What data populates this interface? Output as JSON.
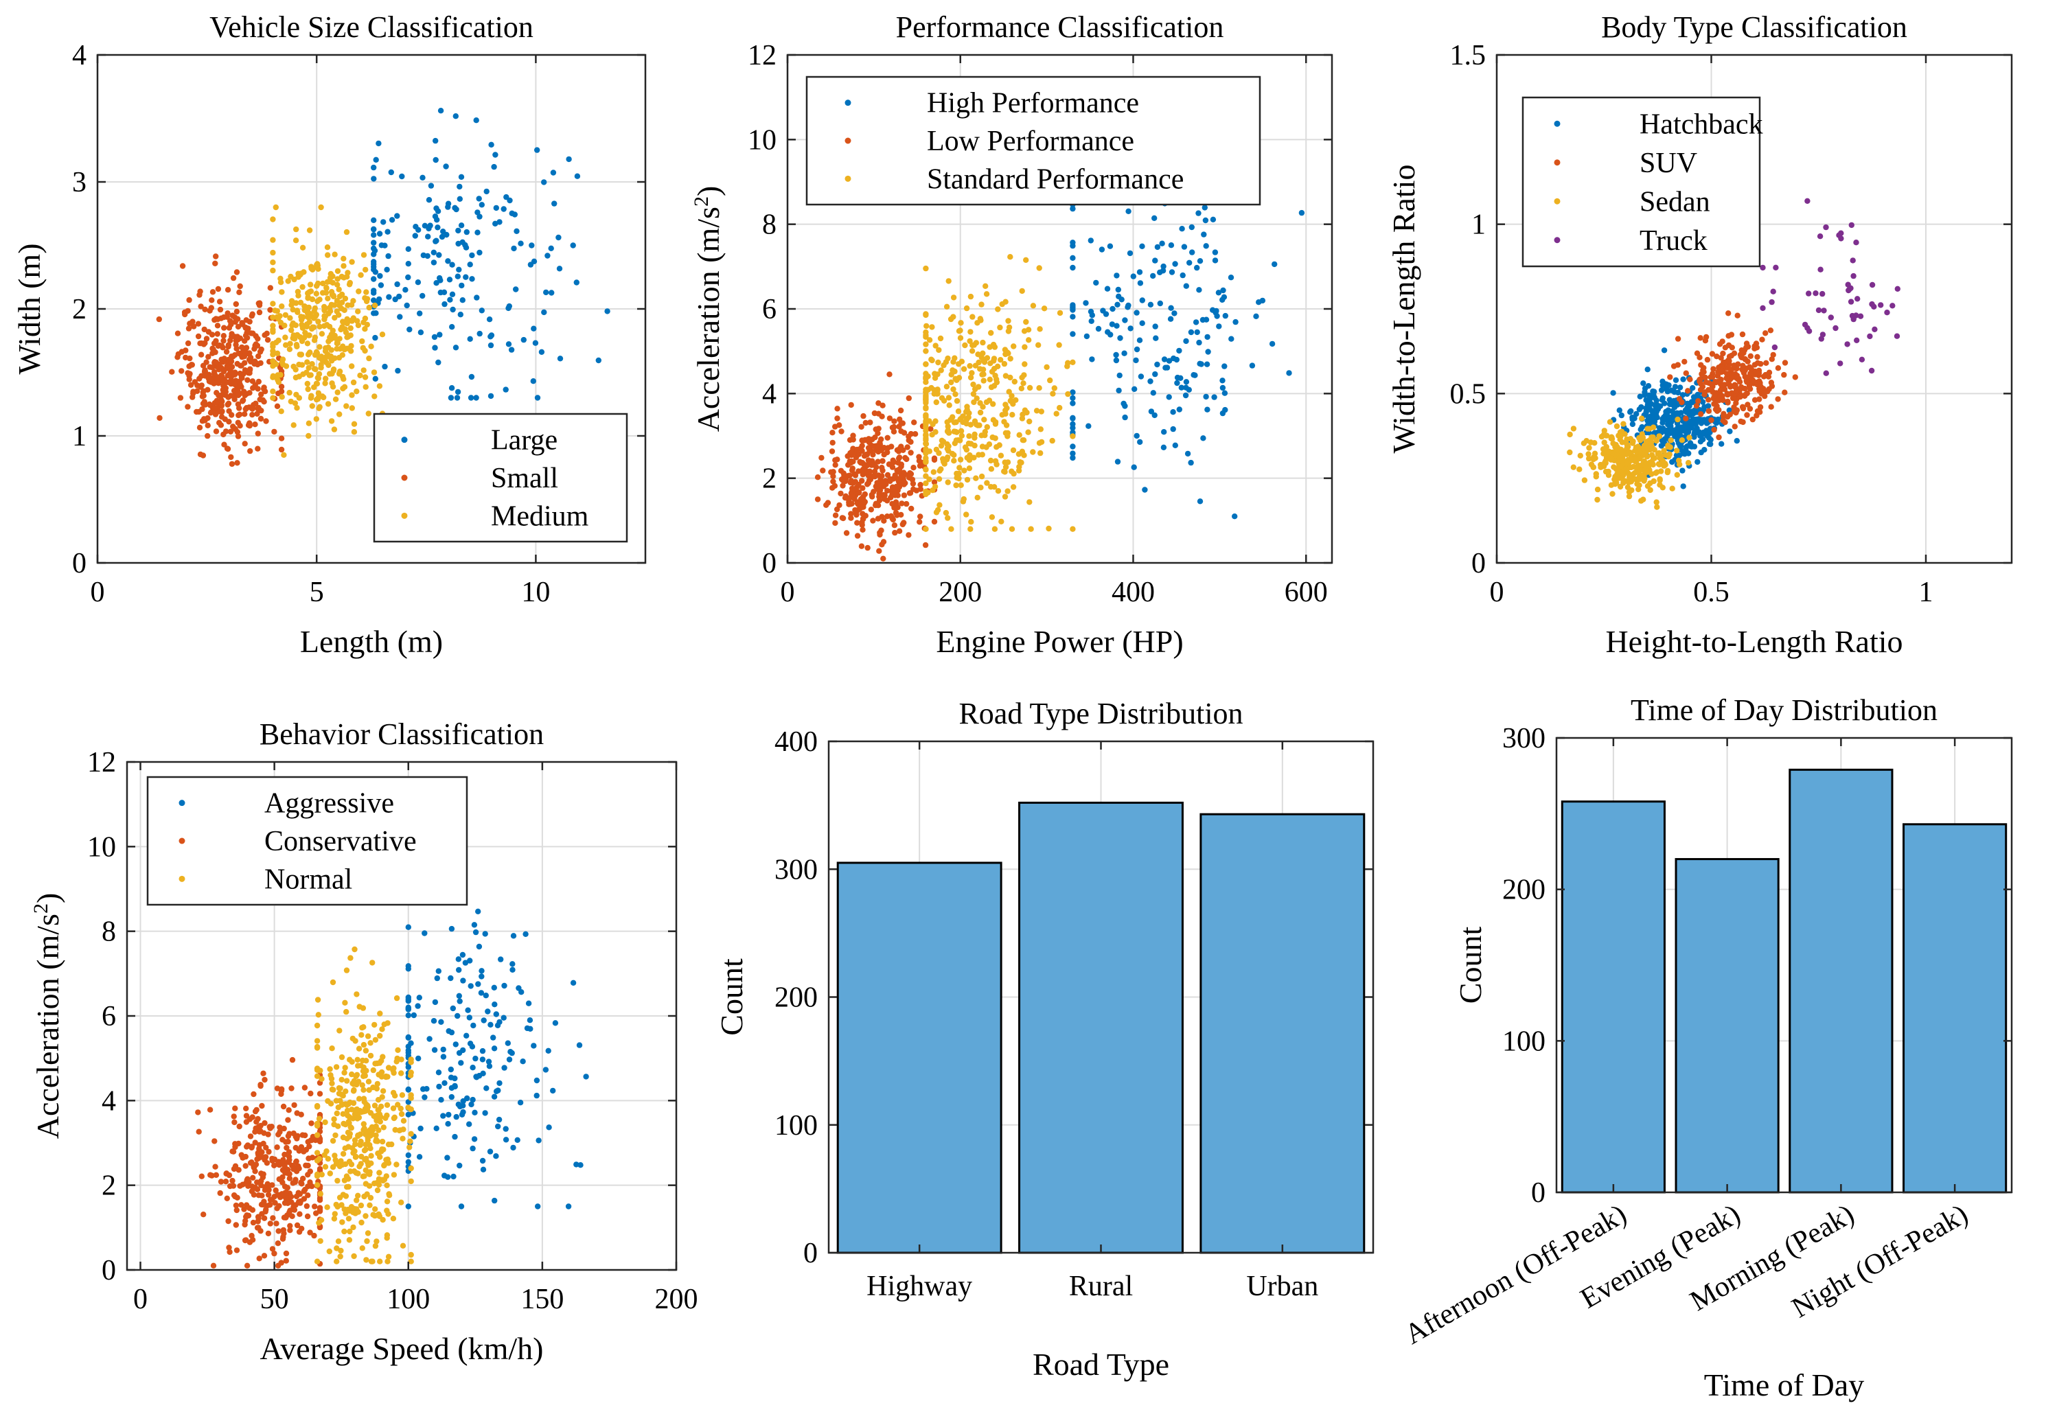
{
  "colors": {
    "blue": "#0072BD",
    "orange": "#D95319",
    "yellow": "#EDB120",
    "purple": "#7E2F8E",
    "bar_fill": "#5fa7d7"
  },
  "chart_data": [
    {
      "type": "scatter",
      "title": "Vehicle Size Classification",
      "xlabel": "Length (m)",
      "ylabel": "Width (m)",
      "xlim": [
        0,
        12.5
      ],
      "ylim": [
        0,
        4
      ],
      "xticks": [
        0,
        5,
        10
      ],
      "yticks": [
        0,
        1,
        2,
        3,
        4
      ],
      "grid": true,
      "legend": "bottom-right",
      "series": [
        {
          "name": "Large",
          "color": "blue",
          "n": 200,
          "cx": 8.0,
          "cy": 2.4,
          "sx": 1.4,
          "sy": 0.5,
          "xmin": 6.3,
          "xmax": 12.0,
          "ymin": 1.3,
          "ymax": 3.9
        },
        {
          "name": "Small",
          "color": "orange",
          "n": 420,
          "cx": 3.0,
          "cy": 1.52,
          "sx": 0.55,
          "sy": 0.3,
          "xmin": 1.4,
          "xmax": 4.2,
          "ymin": 0.65,
          "ymax": 2.7
        },
        {
          "name": "Medium",
          "color": "yellow",
          "n": 380,
          "cx": 5.1,
          "cy": 1.78,
          "sx": 0.65,
          "sy": 0.35,
          "xmin": 4.0,
          "xmax": 6.5,
          "ymin": 0.85,
          "ymax": 2.8
        }
      ]
    },
    {
      "type": "scatter",
      "title": "Performance Classification",
      "xlabel": "Engine Power (HP)",
      "ylabel": "Acceleration (m/s",
      "ylabel_sup": "2",
      "ylabel_end": ")",
      "xlim": [
        0,
        630
      ],
      "ylim": [
        0,
        12
      ],
      "xticks": [
        0,
        200,
        400,
        600
      ],
      "yticks": [
        0,
        2,
        4,
        6,
        8,
        10,
        12
      ],
      "grid": true,
      "legend": "top-left",
      "series": [
        {
          "name": "High Performance",
          "color": "blue",
          "n": 200,
          "cx": 430,
          "cy": 5.6,
          "sx": 70,
          "sy": 1.6,
          "xmin": 330,
          "xmax": 595,
          "ymin": 1.1,
          "ymax": 9.6
        },
        {
          "name": "Low Performance",
          "color": "orange",
          "n": 380,
          "cx": 100,
          "cy": 2.0,
          "sx": 30,
          "sy": 0.75,
          "xmin": 35,
          "xmax": 170,
          "ymin": 0.1,
          "ymax": 6.6
        },
        {
          "name": "Standard Performance",
          "color": "yellow",
          "n": 420,
          "cx": 215,
          "cy": 3.7,
          "sx": 48,
          "sy": 1.3,
          "xmin": 160,
          "xmax": 330,
          "ymin": 0.8,
          "ymax": 8.5
        }
      ]
    },
    {
      "type": "scatter",
      "title": "Body Type Classification",
      "xlabel": "Height-to-Length Ratio",
      "ylabel": "Width-to-Length Ratio",
      "xlim": [
        0,
        1.2
      ],
      "ylim": [
        0,
        1.5
      ],
      "xticks": [
        0,
        0.5,
        1
      ],
      "yticks": [
        0,
        0.5,
        1,
        1.5
      ],
      "grid": true,
      "legend": "top-left",
      "series": [
        {
          "name": "Hatchback",
          "color": "blue",
          "n": 360,
          "cx": 0.42,
          "cy": 0.42,
          "sx": 0.055,
          "sy": 0.06,
          "xmin": 0.25,
          "xmax": 0.62,
          "ymin": 0.22,
          "ymax": 0.64
        },
        {
          "name": "SUV",
          "color": "orange",
          "n": 280,
          "cx": 0.55,
          "cy": 0.54,
          "sx": 0.05,
          "sy": 0.06,
          "xmin": 0.4,
          "xmax": 0.75,
          "ymin": 0.35,
          "ymax": 0.8
        },
        {
          "name": "Sedan",
          "color": "yellow",
          "n": 330,
          "cx": 0.31,
          "cy": 0.3,
          "sx": 0.05,
          "sy": 0.045,
          "xmin": 0.17,
          "xmax": 0.48,
          "ymin": 0.16,
          "ymax": 0.45
        },
        {
          "name": "Truck",
          "color": "purple",
          "n": 55,
          "cx": 0.76,
          "cy": 0.76,
          "sx": 0.13,
          "sy": 0.14,
          "xmin": 0.62,
          "xmax": 1.15,
          "ymin": 0.56,
          "ymax": 1.28
        }
      ]
    },
    {
      "type": "scatter",
      "title": "Behavior Classification",
      "xlabel": "Average Speed (km/h)",
      "ylabel": "Acceleration (m/s",
      "ylabel_sup": "2",
      "ylabel_end": ")",
      "xlim": [
        -5,
        200
      ],
      "ylim": [
        0,
        12
      ],
      "xticks": [
        0,
        50,
        100,
        150,
        200
      ],
      "yticks": [
        0,
        2,
        4,
        6,
        8,
        10,
        12
      ],
      "grid": true,
      "legend": "top-left",
      "series": [
        {
          "name": "Aggressive",
          "color": "blue",
          "n": 200,
          "cx": 122,
          "cy": 5.0,
          "sx": 18,
          "sy": 1.8,
          "xmin": 100,
          "xmax": 190,
          "ymin": 1.5,
          "ymax": 8.8
        },
        {
          "name": "Conservative",
          "color": "orange",
          "n": 380,
          "cx": 50,
          "cy": 2.3,
          "sx": 12,
          "sy": 1.0,
          "xmin": 3,
          "xmax": 67,
          "ymin": 0.1,
          "ymax": 8.0
        },
        {
          "name": "Normal",
          "color": "yellow",
          "n": 420,
          "cx": 82,
          "cy": 3.3,
          "sx": 10,
          "sy": 1.5,
          "xmin": 66,
          "xmax": 101,
          "ymin": 0.2,
          "ymax": 8.6
        }
      ]
    },
    {
      "type": "bar",
      "title": "Road Type Distribution",
      "xlabel": "Road Type",
      "ylabel": "Count",
      "categories": [
        "Highway",
        "Rural",
        "Urban"
      ],
      "values": [
        305,
        352,
        343
      ],
      "ylim": [
        0,
        400
      ],
      "yticks": [
        0,
        100,
        200,
        300,
        400
      ],
      "grid": true
    },
    {
      "type": "bar",
      "title": "Time of Day Distribution",
      "xlabel": "Time of Day",
      "ylabel": "Count",
      "categories": [
        "Afternoon (Off-Peak)",
        "Evening (Peak)",
        "Morning (Peak)",
        "Night (Off-Peak)"
      ],
      "values": [
        258,
        220,
        279,
        243
      ],
      "ylim": [
        0,
        300
      ],
      "yticks": [
        0,
        100,
        200,
        300
      ],
      "grid": true
    }
  ]
}
